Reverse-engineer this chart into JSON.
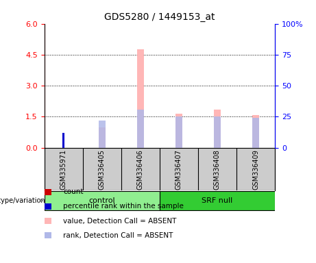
{
  "title": "GDS5280 / 1449153_at",
  "samples": [
    "GSM335971",
    "GSM336405",
    "GSM336406",
    "GSM336407",
    "GSM336408",
    "GSM336409"
  ],
  "groups": [
    {
      "label": "control",
      "indices": [
        0,
        1,
        2
      ],
      "color": "#90ee90"
    },
    {
      "label": "SRF null",
      "indices": [
        3,
        4,
        5
      ],
      "color": "#33cc33"
    }
  ],
  "absent_value_values": [
    0.0,
    1.0,
    4.75,
    1.65,
    1.85,
    1.58
  ],
  "absent_rank_values": [
    0.0,
    22.0,
    31.0,
    25.0,
    25.0,
    24.0
  ],
  "count_values": [
    0.0,
    0.0,
    0.0,
    0.0,
    0.0,
    0.0
  ],
  "rank_values": [
    12.0,
    0.0,
    0.0,
    0.0,
    0.0,
    0.0
  ],
  "left_ylim": [
    0,
    6
  ],
  "left_yticks": [
    0,
    1.5,
    3,
    4.5,
    6
  ],
  "right_ylim": [
    0,
    100
  ],
  "right_yticks": [
    0,
    25,
    50,
    75,
    100
  ],
  "absent_value_color": "#ffb6b6",
  "absent_rank_color": "#b0b8e8",
  "count_color": "#cc0000",
  "rank_color": "#0000cc",
  "sample_bg_color": "#cccccc",
  "genotype_label": "genotype/variation",
  "legend_items": [
    {
      "label": "count",
      "color": "#cc0000"
    },
    {
      "label": "percentile rank within the sample",
      "color": "#0000cc"
    },
    {
      "label": "value, Detection Call = ABSENT",
      "color": "#ffb6b6"
    },
    {
      "label": "rank, Detection Call = ABSENT",
      "color": "#b0b8e8"
    }
  ]
}
